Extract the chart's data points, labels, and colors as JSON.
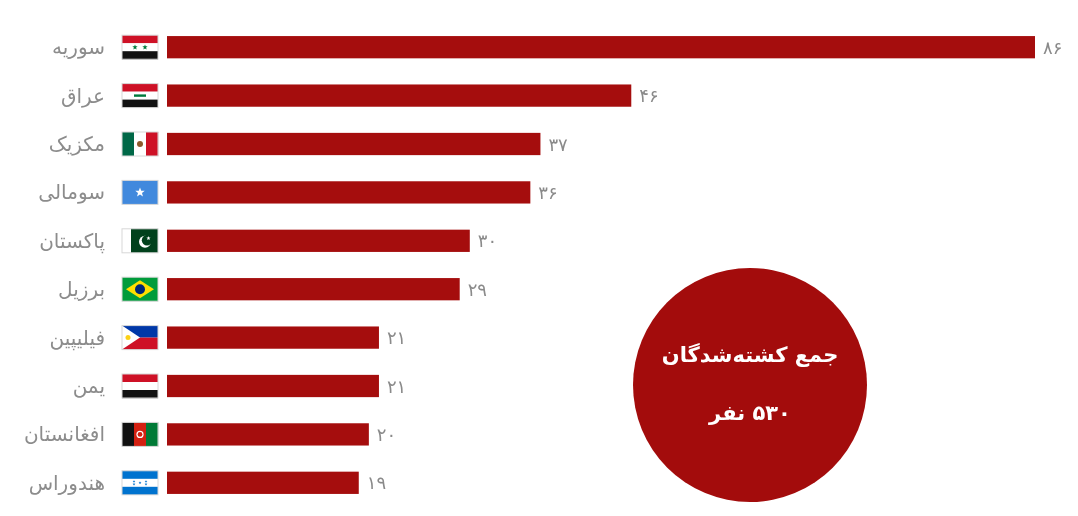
{
  "chart_data": {
    "type": "bar",
    "orientation": "horizontal",
    "categories": [
      "سوریه",
      "عراق",
      "مکزیک",
      "سومالی",
      "پاکستان",
      "برزیل",
      "فیلیپین",
      "یمن",
      "افغانستان",
      "هندوراس"
    ],
    "values": [
      86,
      46,
      37,
      36,
      30,
      29,
      21,
      21,
      20,
      19
    ],
    "value_labels": [
      "۸۶",
      "۴۶",
      "۳۷",
      "۳۶",
      "۳۰",
      "۲۹",
      "۲۱",
      "۲۱",
      "۲۰",
      "۱۹"
    ],
    "color": "#a50d0d",
    "annotations": [
      "جمع کشته‌شدگان",
      "۵۳۰ نفر"
    ]
  }
}
